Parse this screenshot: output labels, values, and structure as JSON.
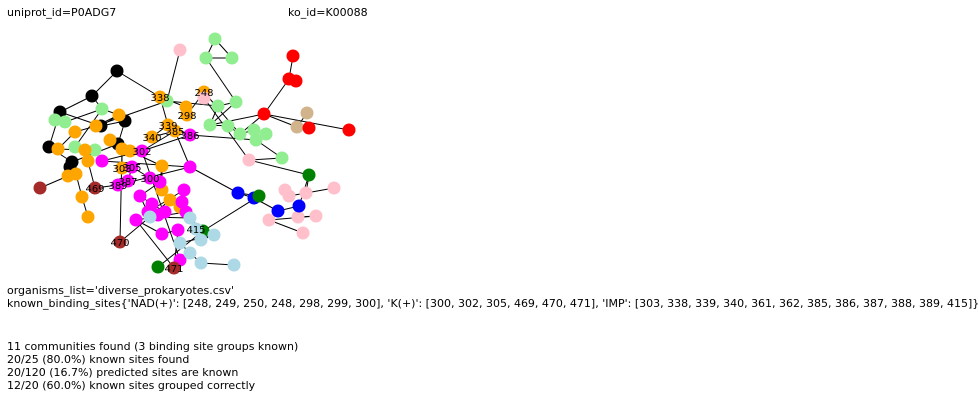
{
  "header": {
    "uniprot_id": "uniprot_id=P0ADG7",
    "ko_id": "ko_id=K00088"
  },
  "colors": {
    "edge": "#000000",
    "lightgreen": "#90EE90",
    "red": "#FF0000",
    "tan": "#D2B48C",
    "black": "#000000",
    "orange": "#FFA500",
    "magenta": "#FF00FF",
    "pink": "#FFC0CB",
    "blue": "#0000FF",
    "green": "#008000",
    "lightblue": "#ADD8E6",
    "brown": "#A52A2A"
  },
  "node_labels": [
    "248",
    "339",
    "338",
    "298",
    "340",
    "385",
    "303",
    "386",
    "302",
    "387",
    "389",
    "305",
    "300",
    "415",
    "469",
    "470",
    "471"
  ],
  "footer": {
    "organisms_list": "organisms_list='diverse_prokaryotes.csv'",
    "known_binding_sites": "known_binding_sites{'NAD(+)': [248, 249, 250, 248, 298, 299, 300], 'K(+)': [300, 302, 305, 469, 470, 471], 'IMP': [303, 338, 339, 340, 361, 362, 385, 386, 387, 388, 389, 415]}",
    "summary": [
      "11 communities found (3 binding site groups known)",
      "20/25 (80.0%) known sites found",
      "20/120 (16.7%) predicted sites are known",
      "12/20 (60.0%) known sites grouped correctly"
    ]
  }
}
